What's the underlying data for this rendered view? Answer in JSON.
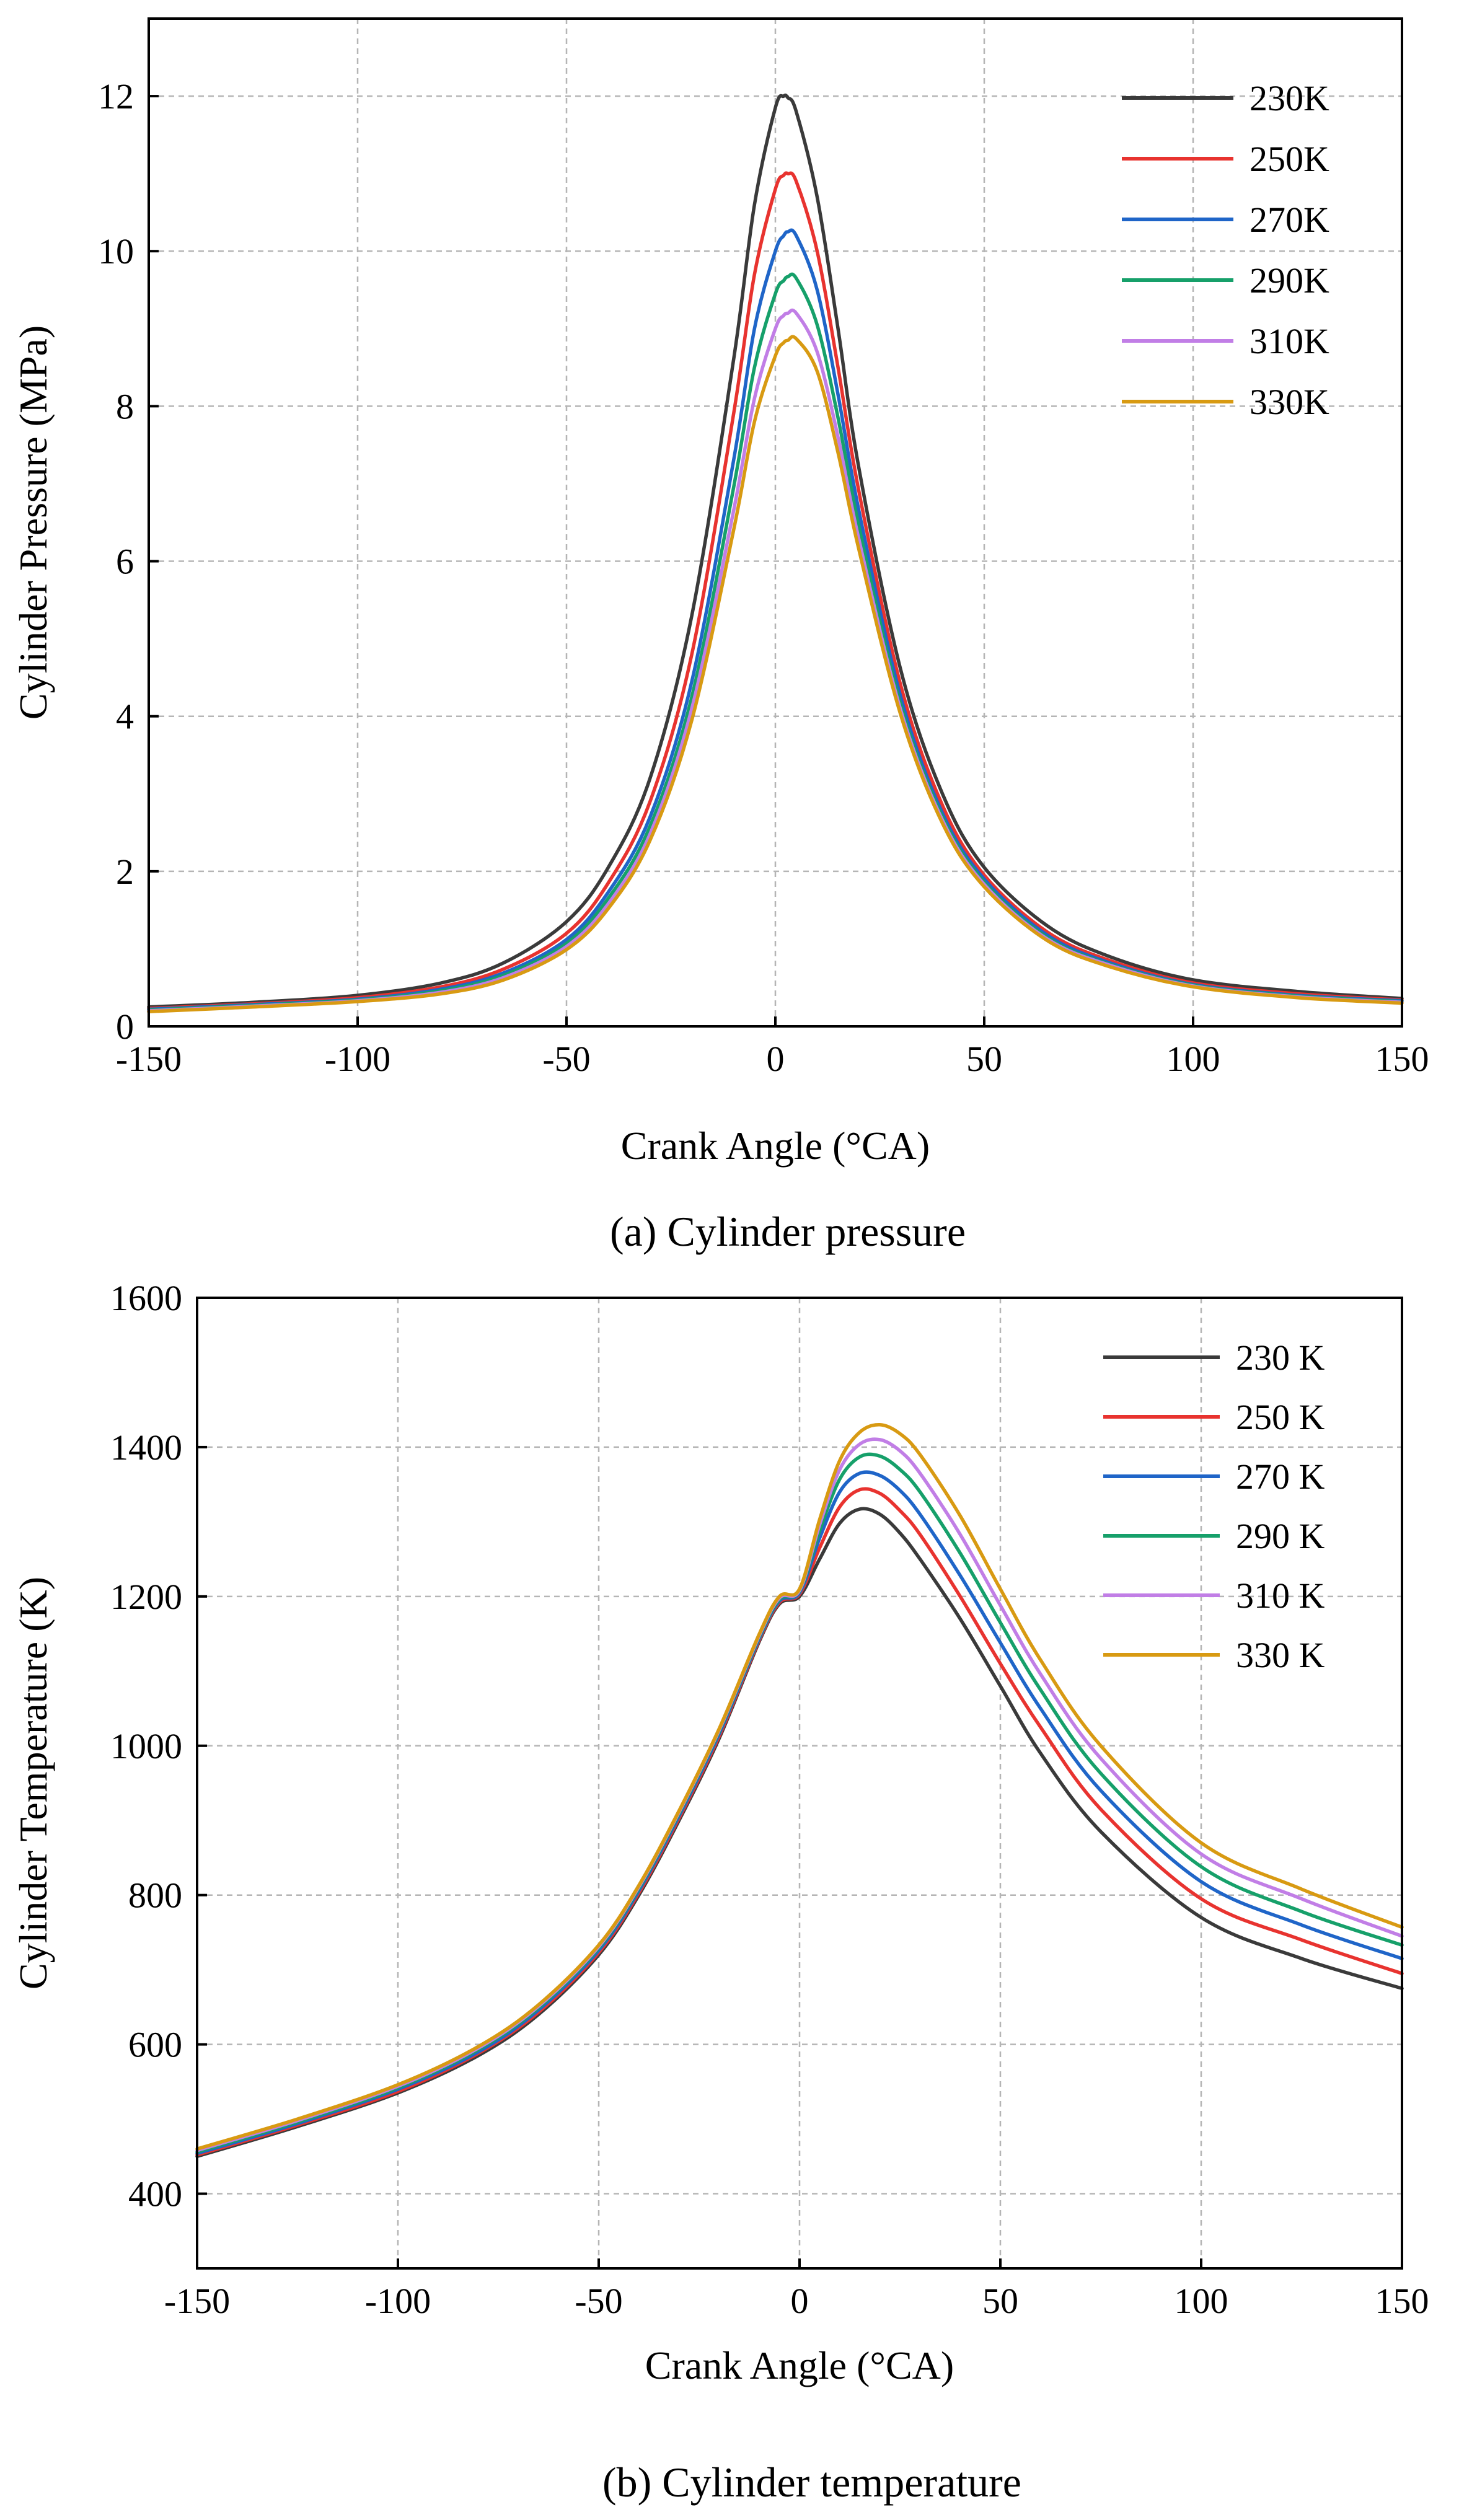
{
  "chart_data": [
    {
      "type": "line",
      "caption": "(a) Cylinder pressure",
      "xlabel": "Crank Angle (°CA)",
      "ylabel": "Cylinder Pressure (MPa)",
      "xlim": [
        -150,
        150
      ],
      "ylim": [
        0,
        13
      ],
      "xticks": [
        -150,
        -100,
        -50,
        0,
        50,
        100,
        150
      ],
      "yticks": [
        0,
        2,
        4,
        6,
        8,
        10,
        12
      ],
      "grid": true,
      "legend_position": "top-right",
      "x": [
        -150,
        -125,
        -100,
        -80,
        -65,
        -50,
        -40,
        -30,
        -20,
        -10,
        -5,
        0,
        2,
        3,
        5,
        10,
        15,
        20,
        30,
        40,
        50,
        65,
        80,
        100,
        125,
        150
      ],
      "series": [
        {
          "name": "230K",
          "color": "#3a3a3a",
          "values": [
            0.25,
            0.31,
            0.4,
            0.56,
            0.82,
            1.35,
            2.05,
            3.2,
            5.3,
            8.6,
            10.6,
            11.85,
            12.0,
            11.98,
            11.8,
            10.7,
            9.0,
            7.2,
            4.6,
            3.0,
            2.05,
            1.3,
            0.9,
            0.6,
            0.45,
            0.36
          ]
        },
        {
          "name": "250K",
          "color": "#e8332f",
          "values": [
            0.23,
            0.29,
            0.37,
            0.51,
            0.74,
            1.2,
            1.85,
            2.9,
            4.8,
            7.9,
            9.7,
            10.8,
            10.98,
            11.0,
            10.9,
            10.0,
            8.5,
            6.9,
            4.4,
            2.85,
            1.95,
            1.22,
            0.85,
            0.56,
            0.42,
            0.34
          ]
        },
        {
          "name": "270K",
          "color": "#1f65c8",
          "values": [
            0.22,
            0.28,
            0.35,
            0.48,
            0.69,
            1.12,
            1.73,
            2.7,
            4.45,
            7.3,
            9.0,
            10.0,
            10.2,
            10.25,
            10.2,
            9.5,
            8.15,
            6.65,
            4.25,
            2.75,
            1.9,
            1.18,
            0.82,
            0.54,
            0.4,
            0.33
          ]
        },
        {
          "name": "290K",
          "color": "#16a06a",
          "values": [
            0.21,
            0.27,
            0.34,
            0.46,
            0.66,
            1.07,
            1.65,
            2.58,
            4.25,
            6.95,
            8.5,
            9.45,
            9.62,
            9.67,
            9.65,
            9.05,
            7.85,
            6.45,
            4.15,
            2.7,
            1.86,
            1.15,
            0.8,
            0.53,
            0.39,
            0.32
          ]
        },
        {
          "name": "310K",
          "color": "#c17ee6",
          "values": [
            0.2,
            0.26,
            0.33,
            0.44,
            0.63,
            1.03,
            1.58,
            2.48,
            4.1,
            6.65,
            8.1,
            9.0,
            9.17,
            9.2,
            9.2,
            8.7,
            7.6,
            6.28,
            4.08,
            2.66,
            1.83,
            1.13,
            0.79,
            0.52,
            0.38,
            0.31
          ]
        },
        {
          "name": "330K",
          "color": "#d89a12",
          "values": [
            0.19,
            0.25,
            0.32,
            0.42,
            0.6,
            0.99,
            1.52,
            2.4,
            3.95,
            6.4,
            7.8,
            8.65,
            8.82,
            8.85,
            8.87,
            8.45,
            7.4,
            6.15,
            4.02,
            2.62,
            1.8,
            1.11,
            0.77,
            0.51,
            0.37,
            0.3
          ]
        }
      ]
    },
    {
      "type": "line",
      "caption": "(b) Cylinder temperature",
      "xlabel": "Crank Angle (°CA)",
      "ylabel": "Cylinder Temperature (K)",
      "xlim": [
        -150,
        150
      ],
      "ylim": [
        300,
        1600
      ],
      "xticks": [
        -150,
        -100,
        -50,
        0,
        50,
        100,
        150
      ],
      "yticks": [
        400,
        600,
        800,
        1000,
        1200,
        1400,
        1600
      ],
      "grid": true,
      "legend_position": "top-right",
      "x": [
        -150,
        -125,
        -100,
        -80,
        -65,
        -50,
        -40,
        -30,
        -20,
        -10,
        -5,
        0,
        5,
        10,
        15,
        20,
        25,
        30,
        40,
        50,
        60,
        75,
        100,
        125,
        150
      ],
      "series": [
        {
          "name": "230 K",
          "color": "#3a3a3a",
          "values": [
            450,
            490,
            535,
            585,
            640,
            720,
            800,
            900,
            1010,
            1140,
            1190,
            1200,
            1250,
            1298,
            1317,
            1310,
            1285,
            1250,
            1170,
            1080,
            990,
            885,
            770,
            715,
            675
          ]
        },
        {
          "name": "250 K",
          "color": "#e8332f",
          "values": [
            452,
            492,
            537,
            588,
            643,
            723,
            803,
            903,
            1013,
            1142,
            1192,
            1203,
            1265,
            1320,
            1343,
            1338,
            1315,
            1283,
            1200,
            1110,
            1025,
            915,
            795,
            740,
            695
          ]
        },
        {
          "name": "270 K",
          "color": "#1f65c8",
          "values": [
            454,
            494,
            540,
            590,
            646,
            726,
            806,
            906,
            1016,
            1144,
            1194,
            1205,
            1278,
            1340,
            1365,
            1362,
            1342,
            1310,
            1228,
            1138,
            1050,
            940,
            818,
            760,
            715
          ]
        },
        {
          "name": "290 K",
          "color": "#16a06a",
          "values": [
            456,
            496,
            542,
            593,
            649,
            729,
            809,
            909,
            1019,
            1146,
            1196,
            1207,
            1288,
            1357,
            1387,
            1388,
            1370,
            1340,
            1258,
            1165,
            1075,
            963,
            838,
            778,
            733
          ]
        },
        {
          "name": "310 K",
          "color": "#c17ee6",
          "values": [
            458,
            498,
            544,
            595,
            651,
            731,
            811,
            911,
            1021,
            1148,
            1198,
            1208,
            1296,
            1370,
            1404,
            1410,
            1395,
            1365,
            1283,
            1188,
            1096,
            983,
            855,
            795,
            745
          ]
        },
        {
          "name": "330 K",
          "color": "#d89a12",
          "values": [
            460,
            500,
            546,
            597,
            653,
            733,
            813,
            913,
            1023,
            1150,
            1200,
            1210,
            1303,
            1382,
            1420,
            1430,
            1418,
            1390,
            1308,
            1210,
            1115,
            1000,
            870,
            808,
            757
          ]
        }
      ]
    }
  ]
}
